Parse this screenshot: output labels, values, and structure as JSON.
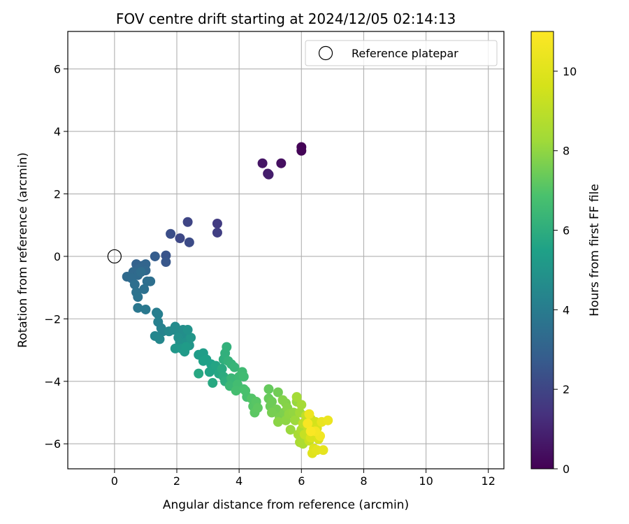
{
  "chart_data": {
    "type": "scatter",
    "title": "FOV centre drift starting at 2024/12/05 02:14:13",
    "xlabel": "Angular distance from reference (arcmin)",
    "ylabel": "Rotation from reference (arcmin)",
    "xlim": [
      -1.5,
      12.5
    ],
    "ylim": [
      -6.8,
      7.2
    ],
    "xticks": [
      0,
      2,
      4,
      6,
      8,
      10,
      12
    ],
    "yticks": [
      -6,
      -4,
      -2,
      0,
      2,
      4,
      6
    ],
    "grid": true,
    "legend": {
      "placement": "top-right",
      "entries": [
        "Reference platepar"
      ]
    },
    "reference_point": {
      "label": "Reference platepar",
      "x": 0,
      "y": 0
    },
    "colorbar": {
      "label": "Hours from first FF file",
      "colormap": "viridis",
      "range": [
        0,
        11
      ],
      "ticks": [
        0,
        2,
        4,
        6,
        8,
        10
      ]
    },
    "series": [
      {
        "points": [
          [
            6.0,
            3.5,
            0.05
          ],
          [
            6.0,
            3.38,
            0.1
          ],
          [
            5.35,
            2.98,
            0.4
          ],
          [
            4.75,
            2.98,
            0.55
          ],
          [
            4.92,
            2.65,
            0.7
          ],
          [
            4.95,
            2.62,
            0.8
          ],
          [
            3.3,
            1.05,
            1.7
          ],
          [
            3.3,
            0.76,
            1.8
          ],
          [
            2.35,
            1.1,
            2.0
          ],
          [
            2.1,
            0.58,
            2.1
          ],
          [
            2.4,
            0.45,
            2.2
          ],
          [
            1.8,
            0.72,
            2.3
          ],
          [
            1.65,
            0.03,
            2.5
          ],
          [
            1.65,
            -0.18,
            2.6
          ],
          [
            1.3,
            0.0,
            2.8
          ],
          [
            0.7,
            -0.25,
            3.0
          ],
          [
            0.9,
            -0.3,
            3.05
          ],
          [
            1.0,
            -0.25,
            3.1
          ],
          [
            0.8,
            -0.4,
            3.15
          ],
          [
            1.0,
            -0.45,
            3.2
          ],
          [
            0.6,
            -0.5,
            3.25
          ],
          [
            0.75,
            -0.6,
            3.3
          ],
          [
            0.4,
            -0.65,
            3.3
          ],
          [
            0.55,
            -0.7,
            3.35
          ],
          [
            0.85,
            -0.5,
            3.4
          ],
          [
            1.05,
            -0.8,
            3.45
          ],
          [
            1.15,
            -0.8,
            3.5
          ],
          [
            0.65,
            -0.9,
            3.5
          ],
          [
            0.95,
            -1.05,
            3.55
          ],
          [
            0.7,
            -1.15,
            3.6
          ],
          [
            0.75,
            -1.3,
            3.65
          ],
          [
            0.75,
            -1.65,
            3.8
          ],
          [
            1.0,
            -1.7,
            3.85
          ],
          [
            1.35,
            -1.8,
            4.0
          ],
          [
            1.4,
            -1.85,
            4.1
          ],
          [
            1.4,
            -2.1,
            4.15
          ],
          [
            1.5,
            -2.3,
            4.2
          ],
          [
            1.55,
            -2.4,
            4.3
          ],
          [
            1.3,
            -2.55,
            4.4
          ],
          [
            1.45,
            -2.65,
            4.45
          ],
          [
            1.75,
            -2.4,
            4.5
          ],
          [
            1.9,
            -2.35,
            4.55
          ],
          [
            1.95,
            -2.25,
            4.6
          ],
          [
            2.05,
            -2.4,
            4.65
          ],
          [
            2.2,
            -2.35,
            4.7
          ],
          [
            2.25,
            -2.6,
            4.75
          ],
          [
            2.05,
            -2.6,
            4.8
          ],
          [
            2.1,
            -2.75,
            4.85
          ],
          [
            2.3,
            -2.75,
            4.9
          ],
          [
            2.4,
            -2.85,
            5.0
          ],
          [
            2.45,
            -2.6,
            5.05
          ],
          [
            1.95,
            -2.95,
            5.1
          ],
          [
            2.15,
            -2.95,
            5.15
          ],
          [
            2.25,
            -3.05,
            5.2
          ],
          [
            2.3,
            -2.9,
            5.25
          ],
          [
            2.35,
            -2.35,
            4.9
          ],
          [
            2.7,
            -3.15,
            5.3
          ],
          [
            2.85,
            -3.1,
            5.35
          ],
          [
            2.95,
            -3.3,
            5.4
          ],
          [
            2.85,
            -3.35,
            5.45
          ],
          [
            3.1,
            -3.45,
            5.5
          ],
          [
            3.15,
            -3.6,
            5.55
          ],
          [
            3.05,
            -3.7,
            5.6
          ],
          [
            3.25,
            -3.5,
            5.65
          ],
          [
            3.35,
            -3.75,
            5.7
          ],
          [
            2.7,
            -3.75,
            5.75
          ],
          [
            3.15,
            -4.05,
            5.8
          ],
          [
            3.45,
            -3.6,
            5.85
          ],
          [
            3.5,
            -3.85,
            5.9
          ],
          [
            3.55,
            -4.0,
            6.0
          ],
          [
            3.5,
            -3.3,
            6.05
          ],
          [
            3.55,
            -3.1,
            6.1
          ],
          [
            3.6,
            -2.9,
            6.15
          ],
          [
            3.65,
            -3.35,
            6.2
          ],
          [
            3.75,
            -3.45,
            6.25
          ],
          [
            3.85,
            -3.55,
            6.3
          ],
          [
            3.75,
            -3.9,
            6.35
          ],
          [
            3.85,
            -4.0,
            6.4
          ],
          [
            3.7,
            -4.15,
            6.45
          ],
          [
            4.0,
            -3.85,
            6.5
          ],
          [
            4.1,
            -3.7,
            6.55
          ],
          [
            4.15,
            -3.85,
            6.6
          ],
          [
            3.95,
            -4.1,
            6.65
          ],
          [
            3.9,
            -4.3,
            6.7
          ],
          [
            4.15,
            -4.25,
            6.75
          ],
          [
            4.25,
            -4.5,
            6.8
          ],
          [
            4.2,
            -4.3,
            6.85
          ],
          [
            4.4,
            -4.55,
            7.0
          ],
          [
            4.45,
            -4.8,
            7.05
          ],
          [
            4.55,
            -4.65,
            7.1
          ],
          [
            4.5,
            -5.0,
            7.15
          ],
          [
            4.6,
            -4.85,
            7.2
          ],
          [
            4.95,
            -4.25,
            7.3
          ],
          [
            4.95,
            -4.55,
            7.35
          ],
          [
            5.0,
            -4.8,
            7.4
          ],
          [
            5.05,
            -4.65,
            7.45
          ],
          [
            5.25,
            -4.35,
            7.5
          ],
          [
            5.2,
            -4.9,
            7.55
          ],
          [
            5.05,
            -5.0,
            7.6
          ],
          [
            5.3,
            -5.15,
            7.65
          ],
          [
            5.45,
            -5.0,
            7.7
          ],
          [
            5.5,
            -4.7,
            7.75
          ],
          [
            5.4,
            -4.6,
            7.8
          ],
          [
            5.55,
            -4.85,
            7.85
          ],
          [
            5.25,
            -5.3,
            7.9
          ],
          [
            5.5,
            -5.25,
            7.95
          ],
          [
            5.6,
            -5.05,
            8.0
          ],
          [
            5.75,
            -5.0,
            8.05
          ],
          [
            5.85,
            -4.65,
            8.1
          ],
          [
            5.65,
            -5.55,
            8.15
          ],
          [
            5.8,
            -5.25,
            8.2
          ],
          [
            5.95,
            -5.0,
            8.3
          ],
          [
            5.85,
            -4.5,
            8.35
          ],
          [
            6.0,
            -4.75,
            8.4
          ],
          [
            5.9,
            -5.7,
            8.45
          ],
          [
            5.95,
            -5.95,
            8.5
          ],
          [
            6.05,
            -6.0,
            8.55
          ],
          [
            6.0,
            -5.55,
            8.6
          ],
          [
            6.05,
            -5.35,
            9.0
          ],
          [
            6.15,
            -5.1,
            9.1
          ],
          [
            6.2,
            -5.45,
            9.15
          ],
          [
            6.1,
            -5.7,
            9.2
          ],
          [
            6.25,
            -5.9,
            9.25
          ],
          [
            6.3,
            -5.2,
            9.3
          ],
          [
            6.35,
            -5.5,
            9.4
          ],
          [
            6.4,
            -5.7,
            9.5
          ],
          [
            6.45,
            -5.3,
            9.6
          ],
          [
            6.5,
            -5.5,
            9.7
          ],
          [
            6.3,
            -5.8,
            9.75
          ],
          [
            6.55,
            -5.85,
            9.8
          ],
          [
            6.4,
            -6.15,
            9.9
          ],
          [
            6.35,
            -6.3,
            10.0
          ],
          [
            6.5,
            -6.2,
            10.1
          ],
          [
            6.7,
            -6.2,
            10.2
          ],
          [
            6.65,
            -5.3,
            10.3
          ],
          [
            6.85,
            -5.25,
            10.4
          ],
          [
            6.25,
            -5.05,
            10.5
          ],
          [
            6.6,
            -5.75,
            10.6
          ],
          [
            6.45,
            -5.6,
            10.7
          ],
          [
            6.2,
            -5.35,
            10.8
          ],
          [
            6.3,
            -5.6,
            10.9
          ]
        ]
      }
    ]
  }
}
